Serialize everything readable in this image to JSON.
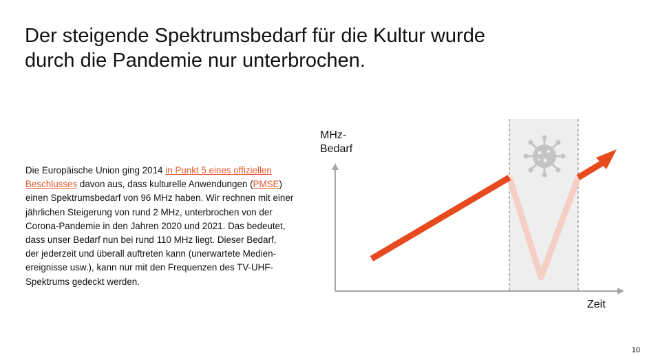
{
  "slide": {
    "title_line1": "Der steigende Spektrumsbedarf für die Kultur wurde",
    "title_line2": "durch die Pandemie nur unterbrochen.",
    "page_number": "10"
  },
  "body": {
    "l1_a": "Die Europäische Union ging 2014 ",
    "l1_link": "in Punkt 5 eines offiziellen",
    "l2_link": "Beschlusses",
    "l2_b": " davon aus, dass kulturelle Anwendungen (",
    "l2_link2": "PMSE",
    "l2_c": ")",
    "l3": "einen Spektrumsbedarf von 96 MHz haben. Wir rechnen mit einer",
    "l4": "jährlichen Steigerung von rund 2 MHz, unterbrochen von der",
    "l5": "Corona-Pandemie in den Jahren 2020 und 2021. Das bedeutet,",
    "l6": "dass unser Bedarf nun bei rund 110 MHz liegt. Dieser Bedarf,",
    "l7": "der jederzeit und überall auftreten kann (unerwartete Medien-",
    "l8": "ereignisse usw.), kann nur mit den Frequenzen des TV-UHF-",
    "l9": "Spektrums gedeckt werden."
  },
  "diagram": {
    "y_label_line1": "MHz-",
    "y_label_line2": "Bedarf",
    "x_label": "Zeit",
    "colors": {
      "trend": "#e84a1f",
      "dip": "#f5cfc5",
      "pandemic_band": "#eeeeee",
      "band_border": "#999999",
      "axis": "#a6a6a6",
      "virus": "#c4c4c4"
    },
    "icons": [
      "virus-icon"
    ]
  }
}
